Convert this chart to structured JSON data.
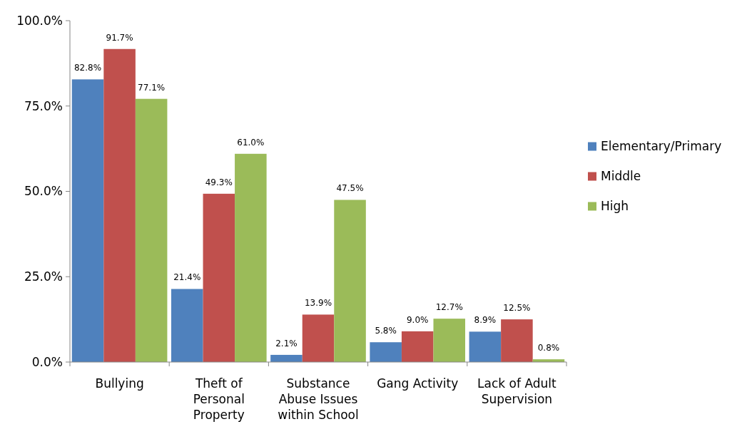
{
  "chart_data": {
    "type": "bar",
    "categories": [
      "Bullying",
      "Theft of Personal Property",
      "Substance Abuse Issues within School",
      "Gang Activity",
      "Lack of Adult Supervision"
    ],
    "series": [
      {
        "name": "Elementary/Primary",
        "color": "#4f81bd",
        "values": [
          82.8,
          21.4,
          2.1,
          5.8,
          8.9
        ],
        "value_labels": [
          "82.8%",
          "21.4%",
          "2.1%",
          "5.8%",
          "8.9%"
        ]
      },
      {
        "name": "Middle",
        "color": "#c0504d",
        "values": [
          91.7,
          49.3,
          13.9,
          9.0,
          12.5
        ],
        "value_labels": [
          "91.7%",
          "49.3%",
          "13.9%",
          "9.0%",
          "12.5%"
        ]
      },
      {
        "name": "High",
        "color": "#9bbb59",
        "values": [
          77.1,
          61.0,
          47.5,
          12.7,
          0.8
        ],
        "value_labels": [
          "77.1%",
          "61.0%",
          "47.5%",
          "12.7%",
          "0.8%"
        ]
      }
    ],
    "ylim": [
      0,
      100
    ],
    "yticks": [
      {
        "value": 0,
        "label": "0.0%"
      },
      {
        "value": 25,
        "label": "25.0%"
      },
      {
        "value": 50,
        "label": "50.0%"
      },
      {
        "value": 75,
        "label": "75.0%"
      },
      {
        "value": 100,
        "label": "100.0%"
      }
    ],
    "grid": false,
    "legend": "right"
  }
}
